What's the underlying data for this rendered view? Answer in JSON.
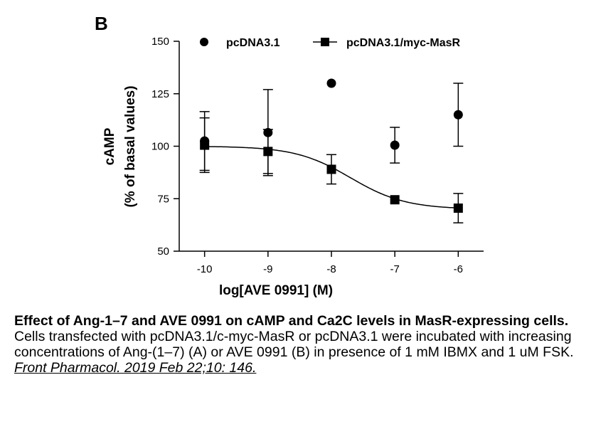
{
  "panel_label": "B",
  "chart_data": {
    "type": "scatter",
    "xlabel": "log[AVE 0991] (M)",
    "ylabel_line1": "cAMP",
    "ylabel_line2": "(% of basal values)",
    "xlim": [
      -10.4,
      -5.6
    ],
    "ylim": [
      50,
      150
    ],
    "xticks": [
      -10,
      -9,
      -8,
      -7,
      -6
    ],
    "xtick_labels": [
      "-10",
      "-9",
      "-8",
      "-7",
      "-6"
    ],
    "yticks": [
      50,
      75,
      100,
      125,
      150
    ],
    "ytick_labels": [
      "50",
      "75",
      "100",
      "125",
      "150"
    ],
    "grid": false,
    "legend_position": "top",
    "series": [
      {
        "name": "pcDNA3.1",
        "marker": "circle",
        "color": "#000000",
        "points": [
          {
            "x": -10,
            "y": 102.5,
            "err": 14
          },
          {
            "x": -9,
            "y": 106.5,
            "err": 20.5
          },
          {
            "x": -8,
            "y": 130,
            "err": null
          },
          {
            "x": -7,
            "y": 100.5,
            "err": 8.5
          },
          {
            "x": -6,
            "y": 115,
            "err": 15
          }
        ]
      },
      {
        "name": "pcDNA3.1/myc-MasR",
        "marker": "square",
        "color": "#000000",
        "fit": {
          "bottom": 70,
          "top": 100,
          "logEC50": -7.7,
          "hill": 1
        },
        "points": [
          {
            "x": -10,
            "y": 100.5,
            "err": 13
          },
          {
            "x": -9,
            "y": 97.5,
            "err": 10.5
          },
          {
            "x": -8,
            "y": 89,
            "err": 7
          },
          {
            "x": -7,
            "y": 74.5,
            "err": null
          },
          {
            "x": -6,
            "y": 70.5,
            "err": 7
          }
        ]
      }
    ]
  },
  "caption": {
    "title": "Effect of Ang-1–7 and AVE 0991 on cAMP and Ca2C levels in MasR-expressing cells.",
    "body": "Cells transfected with pcDNA3.1/c-myc-MasR or pcDNA3.1 were incubated with increasing concentrations of Ang-(1–7) (A) or AVE 0991 (B) in presence of 1 mM IBMX and 1 uM FSK. ",
    "citation": "Front Pharmacol. 2019 Feb 22;10: 146."
  }
}
